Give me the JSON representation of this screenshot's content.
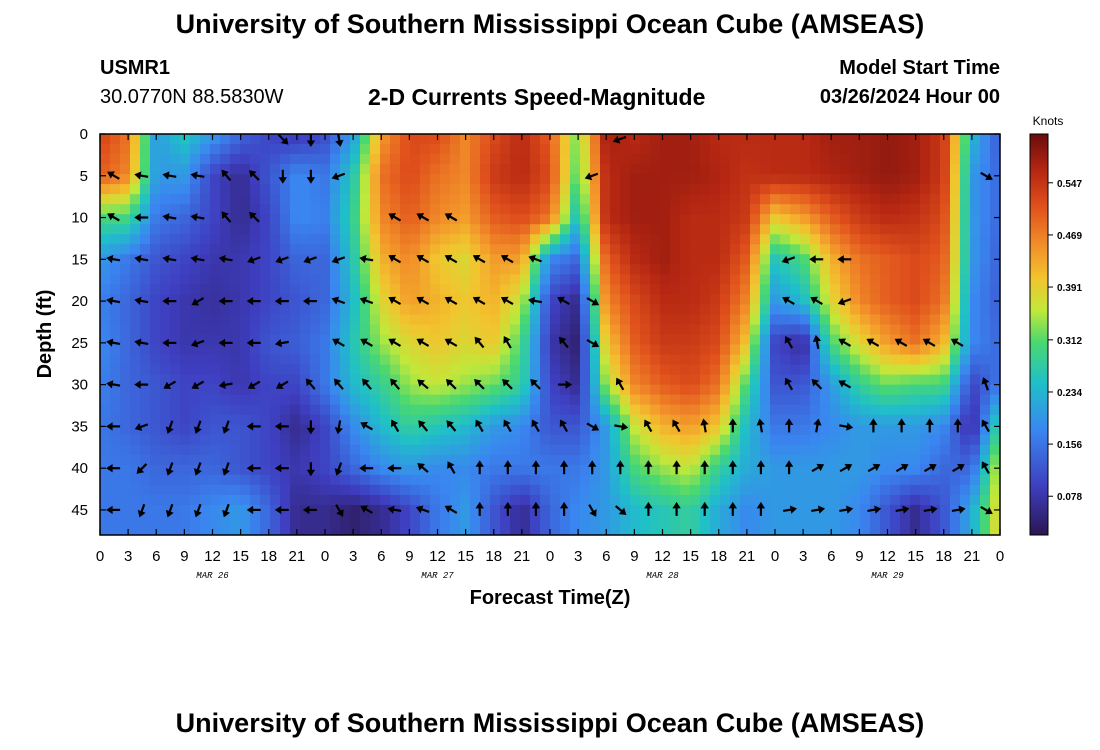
{
  "header": {
    "title": "University of Southern Mississippi Ocean Cube (AMSEAS)",
    "station": "USMR1",
    "coords": "30.0770N  88.5830W",
    "subtitle": "2-D Currents Speed-Magnitude",
    "start_label": "Model Start Time",
    "start_value": "03/26/2024 Hour 00"
  },
  "footer": {
    "title": "University of Southern Mississippi Ocean Cube (AMSEAS)"
  },
  "chart_data": {
    "type": "heatmap",
    "title": "2-D Currents Speed-Magnitude",
    "xlabel": "Forecast Time(Z)",
    "ylabel": "Depth (ft)",
    "x_ticks": [
      "0",
      "3",
      "6",
      "9",
      "12",
      "15",
      "18",
      "21",
      "0",
      "3",
      "6",
      "9",
      "12",
      "15",
      "18",
      "21",
      "0",
      "3",
      "6",
      "9",
      "12",
      "15",
      "18",
      "21",
      "0",
      "3",
      "6",
      "9",
      "12",
      "15",
      "18",
      "21",
      "0"
    ],
    "x_range_hours": [
      0,
      96
    ],
    "date_labels": [
      {
        "label": "MAR 26",
        "hour": 12
      },
      {
        "label": "MAR 27",
        "hour": 36
      },
      {
        "label": "MAR 28",
        "hour": 60
      },
      {
        "label": "MAR 29",
        "hour": 84
      }
    ],
    "y_ticks": [
      0,
      5,
      10,
      15,
      20,
      25,
      30,
      35,
      40,
      45
    ],
    "y_range_ft": [
      0,
      48
    ],
    "colorbar": {
      "label": "Knots",
      "ticks": [
        "0.547",
        "0.469",
        "0.391",
        "0.312",
        "0.234",
        "0.156",
        "0.078"
      ],
      "tick_values": [
        0.547,
        0.469,
        0.391,
        0.312,
        0.234,
        0.156,
        0.078
      ],
      "range": [
        0.02,
        0.62
      ]
    },
    "stops": [
      [
        0.0,
        "#2b1650"
      ],
      [
        0.12,
        "#3e3ec0"
      ],
      [
        0.26,
        "#3a86f0"
      ],
      [
        0.38,
        "#1fc0c8"
      ],
      [
        0.48,
        "#4ad870"
      ],
      [
        0.56,
        "#c0e83a"
      ],
      [
        0.64,
        "#f2c42e"
      ],
      [
        0.72,
        "#f2902a"
      ],
      [
        0.82,
        "#e0501c"
      ],
      [
        0.91,
        "#b42612"
      ],
      [
        1.0,
        "#6a0c0c"
      ]
    ],
    "depths_ft": [
      0,
      5,
      10,
      15,
      20,
      25,
      30,
      35,
      40,
      45
    ],
    "speed_knots": [
      [
        0.53,
        0.48,
        0.2,
        0.26,
        0.2,
        0.14,
        0.1,
        0.08,
        0.11,
        0.2,
        0.44,
        0.52,
        0.52,
        0.46,
        0.52,
        0.56,
        0.5,
        0.32,
        0.58,
        0.56,
        0.58,
        0.58,
        0.56,
        0.56,
        0.56,
        0.56,
        0.58,
        0.58,
        0.59,
        0.58,
        0.54,
        0.24,
        0.12
      ],
      [
        0.5,
        0.46,
        0.2,
        0.2,
        0.1,
        0.06,
        0.12,
        0.18,
        0.16,
        0.26,
        0.48,
        0.52,
        0.48,
        0.46,
        0.54,
        0.56,
        0.52,
        0.3,
        0.56,
        0.58,
        0.58,
        0.58,
        0.57,
        0.55,
        0.56,
        0.56,
        0.57,
        0.58,
        0.59,
        0.58,
        0.54,
        0.2,
        0.14
      ],
      [
        0.3,
        0.3,
        0.16,
        0.14,
        0.1,
        0.06,
        0.1,
        0.18,
        0.17,
        0.28,
        0.46,
        0.5,
        0.46,
        0.44,
        0.5,
        0.52,
        0.48,
        0.24,
        0.56,
        0.58,
        0.58,
        0.56,
        0.56,
        0.54,
        0.4,
        0.44,
        0.5,
        0.54,
        0.56,
        0.55,
        0.52,
        0.2,
        0.14
      ],
      [
        0.2,
        0.16,
        0.12,
        0.1,
        0.08,
        0.08,
        0.1,
        0.14,
        0.14,
        0.26,
        0.42,
        0.46,
        0.4,
        0.38,
        0.44,
        0.44,
        0.18,
        0.14,
        0.5,
        0.56,
        0.58,
        0.56,
        0.56,
        0.5,
        0.26,
        0.3,
        0.42,
        0.48,
        0.5,
        0.52,
        0.5,
        0.2,
        0.13
      ],
      [
        0.17,
        0.14,
        0.1,
        0.08,
        0.07,
        0.08,
        0.1,
        0.12,
        0.14,
        0.24,
        0.38,
        0.44,
        0.42,
        0.4,
        0.42,
        0.36,
        0.1,
        0.06,
        0.46,
        0.52,
        0.56,
        0.56,
        0.54,
        0.46,
        0.2,
        0.24,
        0.38,
        0.46,
        0.5,
        0.52,
        0.48,
        0.18,
        0.13
      ],
      [
        0.18,
        0.14,
        0.1,
        0.08,
        0.08,
        0.08,
        0.12,
        0.13,
        0.16,
        0.26,
        0.34,
        0.38,
        0.4,
        0.38,
        0.4,
        0.3,
        0.08,
        0.04,
        0.4,
        0.5,
        0.54,
        0.54,
        0.52,
        0.4,
        0.1,
        0.06,
        0.3,
        0.38,
        0.44,
        0.48,
        0.42,
        0.18,
        0.14
      ],
      [
        0.17,
        0.14,
        0.12,
        0.1,
        0.1,
        0.08,
        0.1,
        0.1,
        0.16,
        0.24,
        0.28,
        0.34,
        0.36,
        0.34,
        0.32,
        0.28,
        0.1,
        0.06,
        0.34,
        0.46,
        0.5,
        0.52,
        0.48,
        0.3,
        0.12,
        0.12,
        0.2,
        0.28,
        0.32,
        0.3,
        0.3,
        0.1,
        0.16
      ],
      [
        0.16,
        0.14,
        0.12,
        0.1,
        0.12,
        0.12,
        0.1,
        0.06,
        0.1,
        0.18,
        0.24,
        0.28,
        0.26,
        0.24,
        0.2,
        0.18,
        0.12,
        0.12,
        0.2,
        0.36,
        0.42,
        0.44,
        0.4,
        0.24,
        0.16,
        0.16,
        0.18,
        0.2,
        0.2,
        0.2,
        0.18,
        0.06,
        0.3
      ],
      [
        0.16,
        0.16,
        0.14,
        0.14,
        0.14,
        0.12,
        0.1,
        0.08,
        0.1,
        0.14,
        0.18,
        0.2,
        0.18,
        0.18,
        0.16,
        0.16,
        0.16,
        0.16,
        0.2,
        0.3,
        0.34,
        0.36,
        0.28,
        0.22,
        0.2,
        0.2,
        0.2,
        0.2,
        0.18,
        0.18,
        0.14,
        0.14,
        0.38
      ],
      [
        0.16,
        0.16,
        0.16,
        0.16,
        0.18,
        0.2,
        0.14,
        0.06,
        0.06,
        0.04,
        0.06,
        0.1,
        0.16,
        0.2,
        0.12,
        0.06,
        0.14,
        0.18,
        0.2,
        0.24,
        0.26,
        0.28,
        0.22,
        0.18,
        0.2,
        0.2,
        0.2,
        0.18,
        0.12,
        0.06,
        0.12,
        0.22,
        0.4
      ]
    ],
    "arrow_directions_deg": [
      [
        null,
        null,
        null,
        null,
        null,
        null,
        135,
        180,
        170,
        null,
        null,
        null,
        null,
        null,
        null,
        null,
        null,
        null,
        250,
        null,
        null,
        null,
        null,
        null,
        null,
        null,
        null,
        null,
        null,
        null,
        null,
        null,
        135
      ],
      [
        300,
        280,
        280,
        280,
        320,
        315,
        180,
        180,
        250,
        null,
        null,
        null,
        null,
        null,
        null,
        null,
        null,
        250,
        null,
        null,
        null,
        null,
        null,
        null,
        null,
        null,
        null,
        null,
        null,
        null,
        null,
        120,
        160
      ],
      [
        300,
        270,
        280,
        280,
        320,
        315,
        null,
        null,
        null,
        null,
        300,
        300,
        300,
        null,
        null,
        null,
        null,
        null,
        null,
        null,
        null,
        null,
        null,
        null,
        null,
        null,
        null,
        null,
        null,
        null,
        null,
        null,
        null
      ],
      [
        280,
        280,
        280,
        280,
        280,
        250,
        250,
        250,
        250,
        280,
        300,
        300,
        300,
        300,
        300,
        290,
        null,
        null,
        null,
        null,
        null,
        null,
        null,
        null,
        250,
        270,
        270,
        null,
        null,
        null,
        null,
        null,
        180
      ],
      [
        280,
        280,
        270,
        240,
        270,
        270,
        270,
        270,
        290,
        290,
        300,
        300,
        300,
        300,
        300,
        280,
        300,
        120,
        null,
        null,
        null,
        null,
        null,
        null,
        300,
        300,
        250,
        null,
        null,
        null,
        null,
        null,
        180
      ],
      [
        280,
        280,
        270,
        250,
        270,
        270,
        260,
        null,
        300,
        300,
        300,
        300,
        300,
        320,
        330,
        null,
        320,
        120,
        null,
        null,
        null,
        null,
        null,
        null,
        330,
        350,
        300,
        300,
        300,
        300,
        300,
        null,
        170
      ],
      [
        280,
        270,
        240,
        240,
        260,
        240,
        240,
        320,
        320,
        320,
        320,
        310,
        315,
        315,
        315,
        315,
        90,
        null,
        330,
        null,
        null,
        null,
        null,
        null,
        330,
        315,
        300,
        null,
        null,
        null,
        null,
        340,
        150
      ],
      [
        270,
        250,
        200,
        200,
        200,
        270,
        270,
        180,
        190,
        300,
        330,
        320,
        320,
        330,
        330,
        330,
        330,
        120,
        100,
        330,
        330,
        350,
        0,
        350,
        0,
        10,
        100,
        0,
        0,
        0,
        0,
        330,
        150
      ],
      [
        270,
        225,
        200,
        200,
        200,
        270,
        270,
        180,
        200,
        270,
        270,
        310,
        330,
        0,
        0,
        0,
        0,
        0,
        0,
        0,
        0,
        0,
        0,
        0,
        0,
        60,
        60,
        60,
        60,
        60,
        60,
        330,
        150
      ],
      [
        270,
        200,
        200,
        200,
        200,
        270,
        270,
        270,
        150,
        300,
        280,
        290,
        300,
        0,
        0,
        0,
        0,
        150,
        130,
        0,
        0,
        0,
        0,
        0,
        80,
        80,
        80,
        80,
        80,
        80,
        80,
        120,
        150
      ]
    ]
  }
}
